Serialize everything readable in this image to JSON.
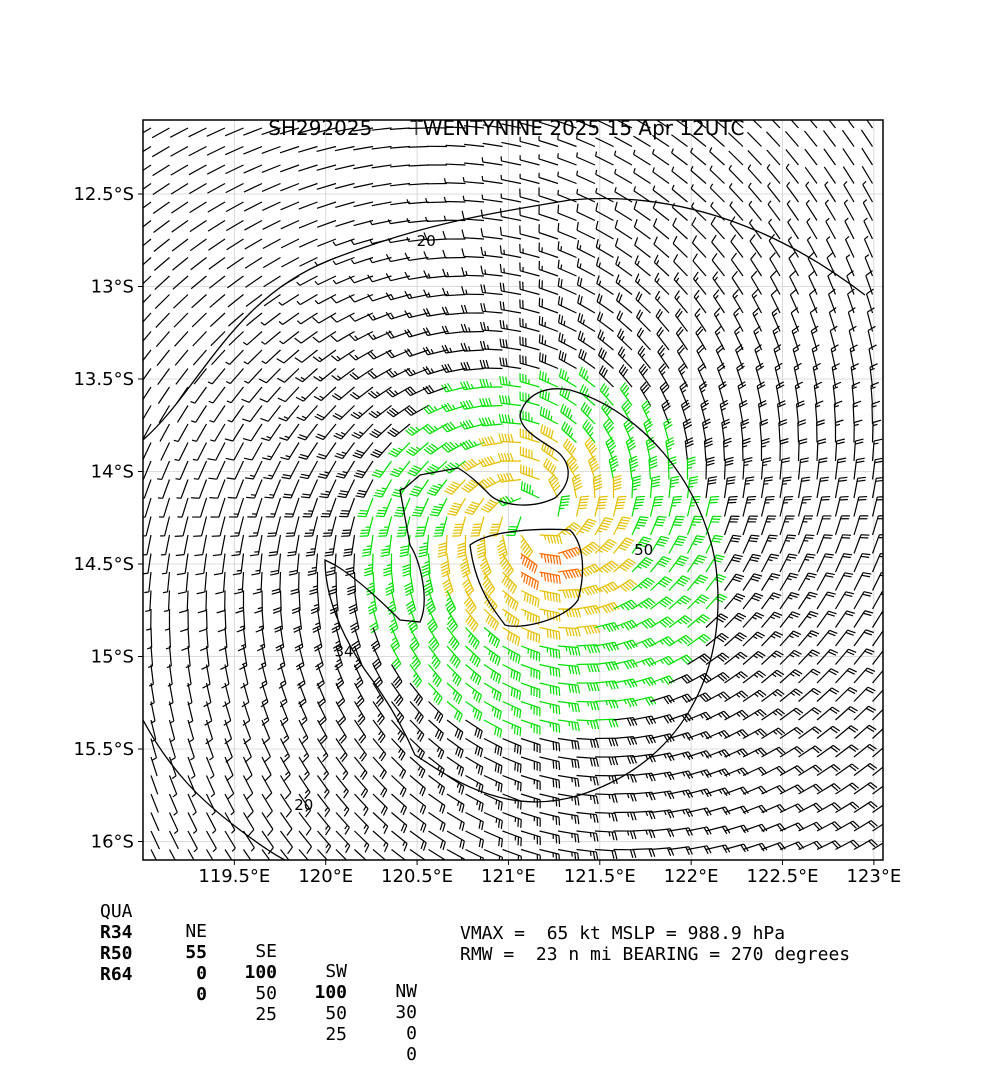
{
  "header": {
    "storm_id": "SH292025",
    "storm_name_time": "TWENTYNINE 2025 15 Apr 12UTC"
  },
  "chart_data": {
    "type": "wind_barb_map",
    "title": "SH292025      TWENTYNINE 2025 15 Apr 12UTC",
    "x_axis": {
      "range": [
        119.0,
        123.05
      ],
      "ticks": [
        119.5,
        120.0,
        120.5,
        121.0,
        121.5,
        122.0,
        122.5,
        123.0
      ],
      "tick_labels": [
        "119.5°E",
        "120°E",
        "120.5°E",
        "121°E",
        "121.5°E",
        "122°E",
        "122.5°E",
        "123°E"
      ]
    },
    "y_axis": {
      "range": [
        -16.1,
        -12.1
      ],
      "ticks": [
        -12.5,
        -13.0,
        -13.5,
        -14.0,
        -14.5,
        -15.0,
        -15.5,
        -16.0
      ],
      "tick_labels": [
        "12.5°S",
        "13°S",
        "13.5°S",
        "14°S",
        "14.5°S",
        "15°S",
        "15.5°S",
        "16°S"
      ]
    },
    "grid": true,
    "storm_center": {
      "lon": 121.15,
      "lat": -14.25
    },
    "barb_colors": {
      "below_34kt": "#000000",
      "34_to_50kt": "#00e000",
      "50_to_64kt": "#e6c000",
      "64_to_80kt": "#ff6a00",
      "above_80kt": "#ff0000"
    },
    "contours": [
      {
        "level": 20,
        "label": "20",
        "label_positions": [
          [
            120.55,
            -12.78
          ],
          [
            119.88,
            -15.83
          ]
        ]
      },
      {
        "level": 34,
        "label": "34",
        "label_positions": [
          [
            120.1,
            -15.0
          ]
        ]
      },
      {
        "level": 50,
        "label": "50",
        "label_positions": [
          [
            121.74,
            -14.45
          ]
        ]
      }
    ],
    "wind_radii": {
      "columns": [
        "QUA",
        "NE",
        "SE",
        "SW",
        "NW"
      ],
      "rows": [
        {
          "label": "R34",
          "values": [
            55,
            100,
            100,
            30
          ]
        },
        {
          "label": "R50",
          "values": [
            0,
            50,
            50,
            0
          ]
        },
        {
          "label": "R64",
          "values": [
            0,
            25,
            25,
            0
          ]
        }
      ]
    },
    "vmax_kt": 65,
    "mslp_hpa": 988.9,
    "rmw_nmi": 23,
    "bearing_deg": 270
  },
  "footer": {
    "line1": "VMAX =  65 kt MSLP = 988.9 hPa",
    "line2": "RMW =  23 n mi BEARING = 270 degrees"
  }
}
